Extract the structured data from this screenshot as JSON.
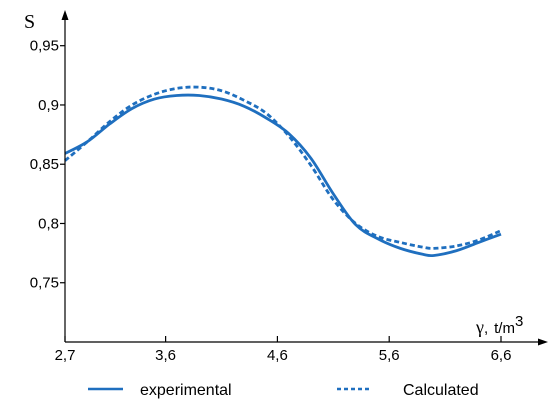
{
  "chart_data": {
    "type": "line",
    "ylabel": "S",
    "xlabel": {
      "symbol": "γ",
      "separator": ",",
      "unit": "t/m",
      "exponent": "3"
    },
    "xlim": [
      2.7,
      7.5
    ],
    "ylim": [
      0.7,
      0.97
    ],
    "x_ticks": [
      2.7,
      3.6,
      4.6,
      5.6,
      6.6
    ],
    "x_tick_labels": [
      "2,7",
      "3,6",
      "4,6",
      "5,6",
      "6,6"
    ],
    "y_ticks": [
      0.75,
      0.8,
      0.85,
      0.9,
      0.95
    ],
    "y_tick_labels": [
      "0,75",
      "0,8",
      "0,85",
      "0,9",
      "0,95"
    ],
    "legend_position": "bottom",
    "series": [
      {
        "name": "experimental",
        "style": "solid",
        "color": "#1f6fbf",
        "points": [
          [
            2.7,
            0.859
          ],
          [
            2.9,
            0.869
          ],
          [
            3.1,
            0.884
          ],
          [
            3.3,
            0.897
          ],
          [
            3.5,
            0.905
          ],
          [
            3.7,
            0.908
          ],
          [
            3.9,
            0.908
          ],
          [
            4.1,
            0.905
          ],
          [
            4.3,
            0.899
          ],
          [
            4.5,
            0.889
          ],
          [
            4.7,
            0.876
          ],
          [
            4.9,
            0.855
          ],
          [
            5.1,
            0.825
          ],
          [
            5.3,
            0.799
          ],
          [
            5.5,
            0.787
          ],
          [
            5.7,
            0.779
          ],
          [
            5.9,
            0.774
          ],
          [
            6.0,
            0.773
          ],
          [
            6.2,
            0.777
          ],
          [
            6.4,
            0.784
          ],
          [
            6.6,
            0.791
          ]
        ]
      },
      {
        "name": "Calculated",
        "style": "dashed",
        "color": "#1f6fbf",
        "points": [
          [
            2.7,
            0.853
          ],
          [
            2.9,
            0.869
          ],
          [
            3.1,
            0.886
          ],
          [
            3.3,
            0.9
          ],
          [
            3.5,
            0.909
          ],
          [
            3.7,
            0.914
          ],
          [
            3.9,
            0.915
          ],
          [
            4.1,
            0.912
          ],
          [
            4.3,
            0.904
          ],
          [
            4.5,
            0.893
          ],
          [
            4.7,
            0.874
          ],
          [
            4.9,
            0.849
          ],
          [
            5.1,
            0.82
          ],
          [
            5.3,
            0.8
          ],
          [
            5.5,
            0.789
          ],
          [
            5.7,
            0.784
          ],
          [
            5.9,
            0.78
          ],
          [
            6.0,
            0.779
          ],
          [
            6.2,
            0.781
          ],
          [
            6.4,
            0.786
          ],
          [
            6.6,
            0.794
          ]
        ]
      }
    ]
  }
}
